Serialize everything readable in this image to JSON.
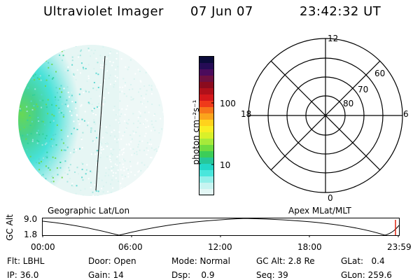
{
  "header": {
    "title": "Ultraviolet Imager",
    "date": "07 Jun 07",
    "time": "23:42:32 UT"
  },
  "map_labels": {
    "left": "Geographic Lat/Lon",
    "right": "Apex MLat/MLT"
  },
  "colorbar": {
    "unit_label": "photon cm⁻²s⁻¹",
    "ticks": [
      "100",
      "10"
    ],
    "scale": "log",
    "colors": [
      "#0b0b3a",
      "#250b55",
      "#4b0b5c",
      "#6e1040",
      "#8b0b1e",
      "#b0101a",
      "#d4181b",
      "#ef3a1a",
      "#f7761a",
      "#fba41c",
      "#ffd21c",
      "#f8ee24",
      "#d9f02a",
      "#a6ea3a",
      "#6fdc40",
      "#3ccd58",
      "#25c79a",
      "#23d8c8",
      "#4ae6dc",
      "#93efe9",
      "#c7f4f1",
      "#e3f7f5"
    ]
  },
  "polar_plot": {
    "mlt_labels": {
      "top": "12",
      "left": "18",
      "right": "6",
      "bottom": "0"
    },
    "lat_labels": [
      "60",
      "70",
      "80"
    ]
  },
  "altitude_plot": {
    "ylabel": "GC Alt",
    "y_ticks": [
      "9.0",
      "1.8"
    ],
    "x_ticks": [
      "00:00",
      "06:00",
      "12:00",
      "18:00",
      "23:59"
    ]
  },
  "info_rows": [
    [
      {
        "text": "Flt: LBHL"
      },
      {
        "text": "Door: Open"
      },
      {
        "text": "Mode: Normal"
      },
      {
        "text": "GC Alt: 2.8 Re"
      },
      {
        "text": "GLat:   0.4"
      }
    ],
    [
      {
        "text": "IP: 36.0"
      },
      {
        "text": "Gain: 14"
      },
      {
        "text": "Dsp:    0.9"
      },
      {
        "text": "Seq: 39"
      },
      {
        "text": "GLon: 259.6"
      }
    ]
  ]
}
